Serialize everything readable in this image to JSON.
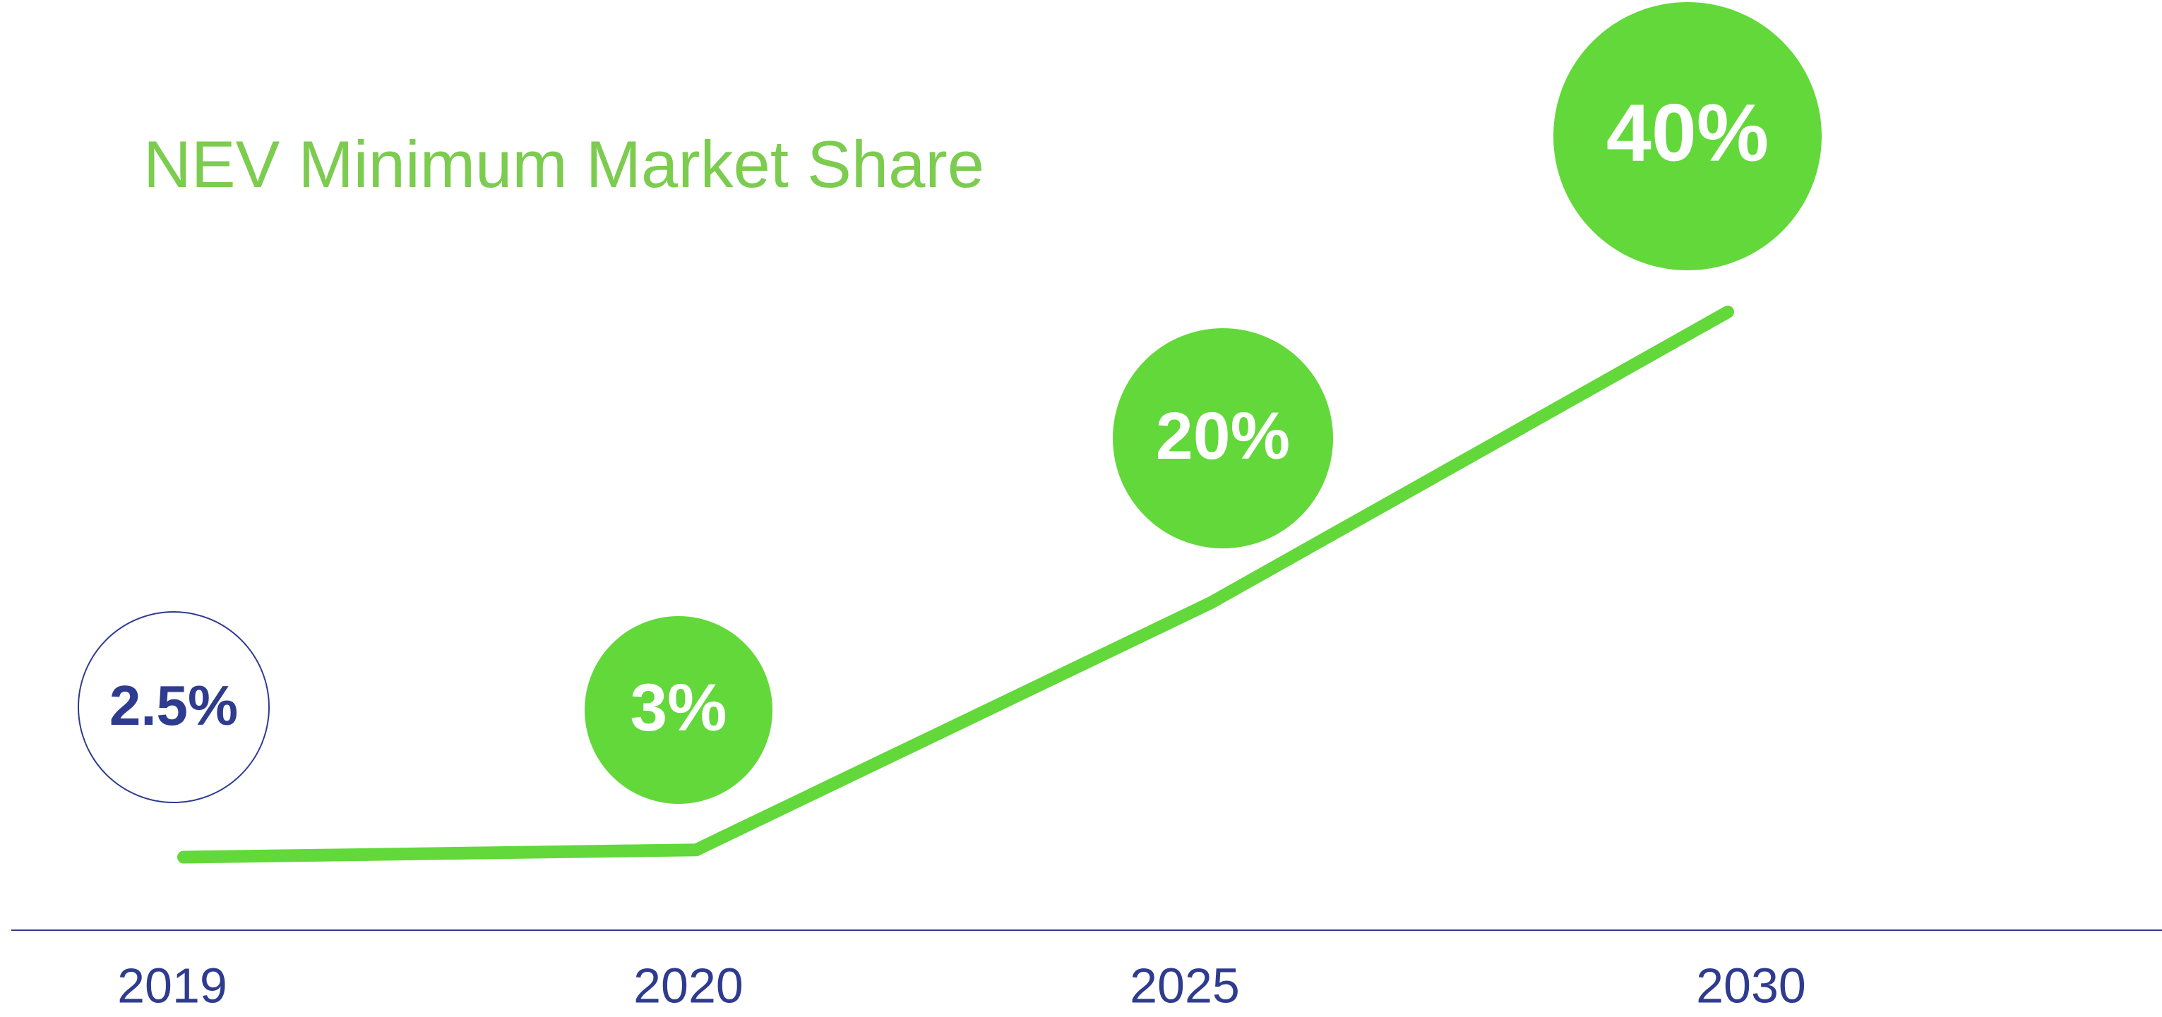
{
  "chart_data": {
    "type": "line",
    "title": "NEV Minimum Market Share",
    "categories": [
      "2019",
      "2020",
      "2025",
      "2030"
    ],
    "values": [
      2.5,
      3,
      20,
      40
    ],
    "value_labels": [
      "2.5%",
      "3%",
      "20%",
      "40%"
    ],
    "color": "#62d83a",
    "title_color": "#7ccc4f",
    "axis_color": "#2e3b8f"
  }
}
